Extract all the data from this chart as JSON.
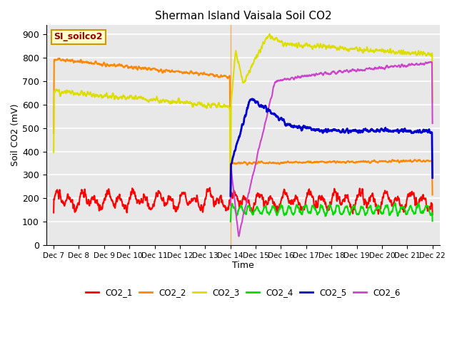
{
  "title": "Sherman Island Vaisala Soil CO2",
  "xlabel": "Time",
  "ylabel": "Soil CO2 (mV)",
  "ylim": [
    0,
    940
  ],
  "background_color": "#ffffff",
  "plot_bg_color": "#e8e8e8",
  "grid_color": "#ffffff",
  "series_colors": {
    "CO2_1": "#ff0000",
    "CO2_2": "#ff8800",
    "CO2_3": "#dddd00",
    "CO2_4": "#00dd00",
    "CO2_5": "#0000cc",
    "CO2_6": "#cc44cc"
  },
  "legend_label": "SI_soilco2",
  "x_tick_labels": [
    "Dec 7",
    "Dec 8",
    "Dec 9",
    "Dec 10",
    "Dec 11",
    "Dec 12",
    "Dec 13",
    "Dec 14",
    "Dec 15",
    "Dec 16",
    "Dec 17",
    "Dec 18",
    "Dec 19",
    "Dec 20",
    "Dec 21",
    "Dec 22"
  ],
  "yticks": [
    0,
    100,
    200,
    300,
    400,
    500,
    600,
    700,
    800,
    900
  ]
}
